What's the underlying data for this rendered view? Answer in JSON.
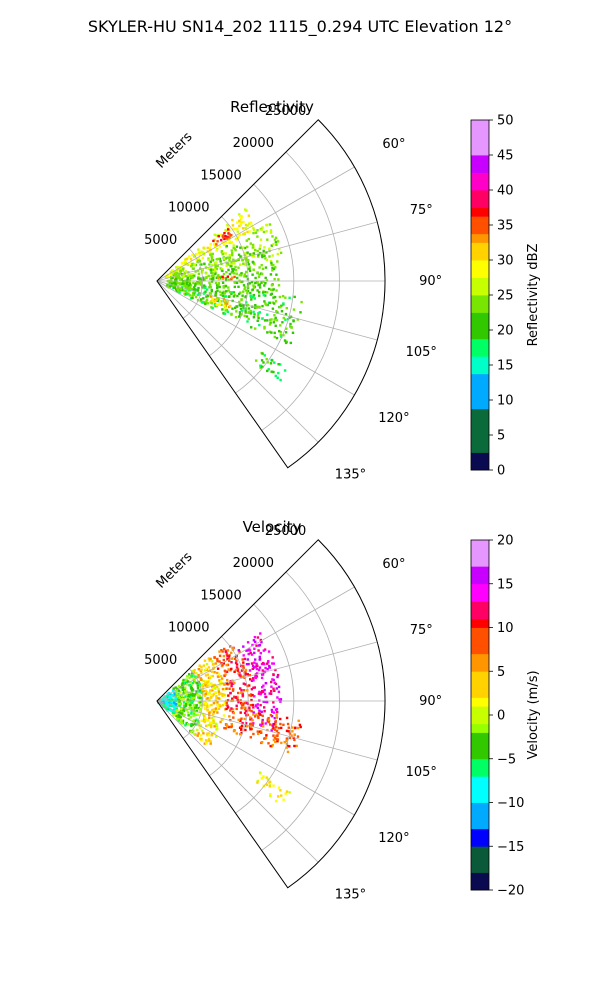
{
  "figure": {
    "suptitle": "SKYLER-HU  SN14_202  1115_0.294 UTC Elevation 12°"
  },
  "chart_data": [
    {
      "type": "heatmap",
      "subtype": "polar-sector",
      "title": "Reflectivity",
      "radial_label": "Meters",
      "r_ticks": [
        5000,
        10000,
        15000,
        20000,
        25000
      ],
      "r_tick_labels": [
        "5000",
        "10000",
        "15000",
        "20000",
        "25000"
      ],
      "rlim": [
        0,
        25000
      ],
      "theta_ticks": [
        60,
        75,
        90,
        105,
        120,
        135
      ],
      "theta_tick_labels": [
        "60°",
        "75°",
        "90°",
        "105°",
        "120°",
        "135°"
      ],
      "theta_range_deg": [
        45,
        145
      ],
      "grid": true,
      "colorbar": {
        "label": "Reflectivity dBZ",
        "ticks": [
          0,
          5,
          10,
          15,
          20,
          25,
          30,
          35,
          40,
          45,
          50
        ],
        "tick_labels": [
          "0",
          "5",
          "10",
          "15",
          "20",
          "25",
          "30",
          "35",
          "40",
          "45",
          "50"
        ],
        "range": [
          0,
          50
        ],
        "stops": [
          [
            "#0a0a50",
            0
          ],
          [
            "#1a1a90",
            0.05
          ],
          [
            "#0000ee",
            0.1
          ],
          [
            "#0a6a3a",
            0.06
          ],
          [
            "#00aaff",
            0.18
          ],
          [
            "#00ffc8",
            0.28
          ],
          [
            "#00ff64",
            0.33
          ],
          [
            "#32c800",
            0.38
          ],
          [
            "#78e600",
            0.44
          ],
          [
            "#c8ff00",
            0.5
          ],
          [
            "#ffff00",
            0.55
          ],
          [
            "#ffd200",
            0.6
          ],
          [
            "#ff9600",
            0.64
          ],
          [
            "#ff5000",
            0.68
          ],
          [
            "#ff0000",
            0.72
          ],
          [
            "#ff0064",
            0.76
          ],
          [
            "#ff00c8",
            0.8
          ],
          [
            "#c800ff",
            0.85
          ],
          [
            "#e696ff",
            0.9
          ],
          [
            "#ffe0ff",
            1.0
          ]
        ]
      },
      "echo_regions": [
        {
          "az": [
            50,
            62
          ],
          "r": [
            1000,
            12500
          ],
          "value": 28
        },
        {
          "az": [
            52,
            58
          ],
          "r": [
            7500,
            10000
          ],
          "value": 36
        },
        {
          "az": [
            62,
            80
          ],
          "r": [
            1500,
            14000
          ],
          "value": 24
        },
        {
          "az": [
            80,
            96
          ],
          "r": [
            1000,
            13500
          ],
          "value": 22
        },
        {
          "az": [
            84,
            88
          ],
          "r": [
            6500,
            8500
          ],
          "value": 34
        },
        {
          "az": [
            96,
            116
          ],
          "r": [
            1000,
            16000
          ],
          "value": 21
        },
        {
          "az": [
            104,
            112
          ],
          "r": [
            6000,
            8500
          ],
          "value": 30
        },
        {
          "az": [
            124,
            130
          ],
          "r": [
            13500,
            17500
          ],
          "value": 20
        }
      ]
    },
    {
      "type": "heatmap",
      "subtype": "polar-sector",
      "title": "Velocity",
      "radial_label": "Meters",
      "r_ticks": [
        5000,
        10000,
        15000,
        20000,
        25000
      ],
      "r_tick_labels": [
        "5000",
        "10000",
        "15000",
        "20000",
        "25000"
      ],
      "rlim": [
        0,
        25000
      ],
      "theta_ticks": [
        60,
        75,
        90,
        105,
        120,
        135
      ],
      "theta_tick_labels": [
        "60°",
        "75°",
        "90°",
        "105°",
        "120°",
        "135°"
      ],
      "theta_range_deg": [
        45,
        145
      ],
      "grid": true,
      "colorbar": {
        "label": "Velocity (m/s)",
        "ticks": [
          -20,
          -15,
          -10,
          -5,
          0,
          5,
          10,
          15,
          20
        ],
        "tick_labels": [
          "−20",
          "−15",
          "−10",
          "−5",
          "0",
          "5",
          "10",
          "15",
          "20"
        ],
        "range": [
          -20,
          20
        ],
        "stops": [
          [
            "#0a0a50",
            0
          ],
          [
            "#0a5a3a",
            0.06
          ],
          [
            "#0000ff",
            0.12
          ],
          [
            "#00aaff",
            0.18
          ],
          [
            "#00ffff",
            0.25
          ],
          [
            "#00ff64",
            0.33
          ],
          [
            "#32c800",
            0.38
          ],
          [
            "#96ff00",
            0.44
          ],
          [
            "#c8ff00",
            0.48
          ],
          [
            "#ffff00",
            0.52
          ],
          [
            "#ffd200",
            0.56
          ],
          [
            "#ff9600",
            0.62
          ],
          [
            "#ff5000",
            0.68
          ],
          [
            "#ff0000",
            0.74
          ],
          [
            "#ff0064",
            0.77
          ],
          [
            "#ff00ff",
            0.82
          ],
          [
            "#c800ff",
            0.88
          ],
          [
            "#e696ff",
            0.93
          ],
          [
            "#ffe0ff",
            1.0
          ]
        ]
      },
      "echo_regions": [
        {
          "az": [
            48,
            132
          ],
          "r": [
            0,
            2200
          ],
          "value": -8
        },
        {
          "az": [
            48,
            132
          ],
          "r": [
            2200,
            5000
          ],
          "value": -3
        },
        {
          "az": [
            48,
            132
          ],
          "r": [
            5000,
            7500
          ],
          "value": 3
        },
        {
          "az": [
            50,
            112
          ],
          "r": [
            7500,
            10500
          ],
          "value": 9
        },
        {
          "az": [
            56,
            104
          ],
          "r": [
            10500,
            13500
          ],
          "value": 14
        },
        {
          "az": [
            96,
            112
          ],
          "r": [
            10500,
            16000
          ],
          "value": 8
        },
        {
          "az": [
            124,
            130
          ],
          "r": [
            13500,
            17500
          ],
          "value": 2
        }
      ]
    }
  ]
}
